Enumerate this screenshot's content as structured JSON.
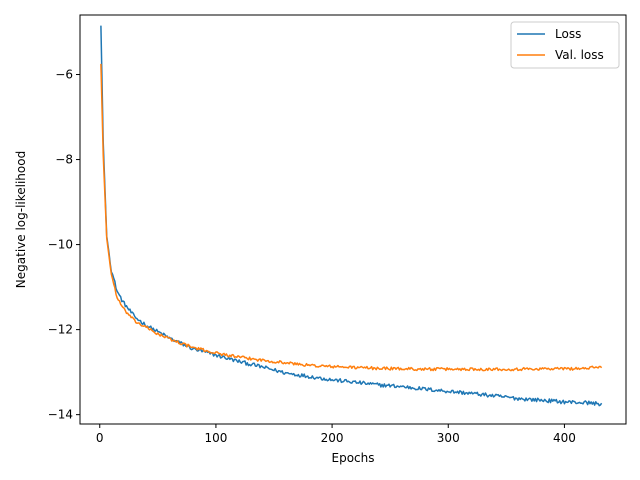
{
  "chart_data": {
    "type": "line",
    "title": "",
    "xlabel": "Epochs",
    "ylabel": "Negative log-likelihood",
    "xlim": [
      -17,
      453
    ],
    "ylim": [
      -14.22,
      -4.6
    ],
    "xticks": [
      0,
      100,
      200,
      300,
      400
    ],
    "yticks": [
      -14,
      -12,
      -10,
      -8,
      -6
    ],
    "grid": false,
    "legend_position": "top-right",
    "series": [
      {
        "name": "Loss",
        "color": "#1f77b4",
        "anchors": [
          [
            1,
            -4.85
          ],
          [
            3,
            -7.6
          ],
          [
            6,
            -9.8
          ],
          [
            10,
            -10.6
          ],
          [
            15,
            -11.1
          ],
          [
            20,
            -11.35
          ],
          [
            30,
            -11.7
          ],
          [
            40,
            -11.9
          ],
          [
            50,
            -12.05
          ],
          [
            60,
            -12.2
          ],
          [
            80,
            -12.45
          ],
          [
            100,
            -12.6
          ],
          [
            120,
            -12.75
          ],
          [
            140,
            -12.88
          ],
          [
            160,
            -13.02
          ],
          [
            180,
            -13.1
          ],
          [
            200,
            -13.18
          ],
          [
            220,
            -13.24
          ],
          [
            240,
            -13.3
          ],
          [
            260,
            -13.34
          ],
          [
            280,
            -13.4
          ],
          [
            300,
            -13.45
          ],
          [
            320,
            -13.5
          ],
          [
            340,
            -13.56
          ],
          [
            360,
            -13.62
          ],
          [
            380,
            -13.66
          ],
          [
            400,
            -13.7
          ],
          [
            420,
            -13.72
          ],
          [
            432,
            -13.75
          ]
        ],
        "noise": 0.045
      },
      {
        "name": "Val. loss",
        "color": "#ff7f0e",
        "anchors": [
          [
            1,
            -5.75
          ],
          [
            3,
            -7.9
          ],
          [
            6,
            -9.85
          ],
          [
            10,
            -10.7
          ],
          [
            15,
            -11.25
          ],
          [
            20,
            -11.5
          ],
          [
            30,
            -11.8
          ],
          [
            40,
            -11.95
          ],
          [
            50,
            -12.1
          ],
          [
            60,
            -12.22
          ],
          [
            80,
            -12.42
          ],
          [
            100,
            -12.55
          ],
          [
            120,
            -12.65
          ],
          [
            140,
            -12.72
          ],
          [
            160,
            -12.78
          ],
          [
            180,
            -12.84
          ],
          [
            200,
            -12.87
          ],
          [
            220,
            -12.89
          ],
          [
            240,
            -12.91
          ],
          [
            260,
            -12.92
          ],
          [
            280,
            -12.93
          ],
          [
            300,
            -12.93
          ],
          [
            320,
            -12.93
          ],
          [
            340,
            -12.93
          ],
          [
            360,
            -12.93
          ],
          [
            380,
            -12.92
          ],
          [
            400,
            -12.92
          ],
          [
            420,
            -12.91
          ],
          [
            432,
            -12.87
          ]
        ],
        "noise": 0.035
      }
    ]
  }
}
